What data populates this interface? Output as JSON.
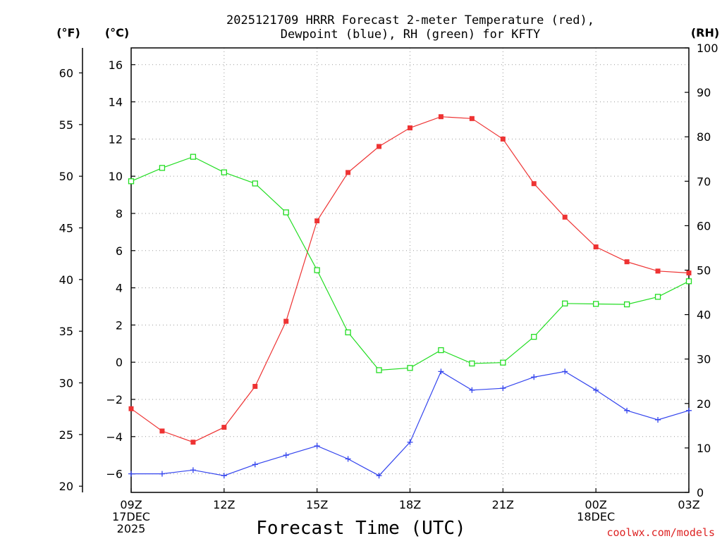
{
  "chart_data": {
    "type": "line",
    "title_line1": "2025121709 HRRR Forecast 2-meter Temperature (red),",
    "title_line2": "Dewpoint (blue), RH (green) for KFTY",
    "xlabel": "Forecast Time (UTC)",
    "credit": "coolwx.com/models",
    "units": {
      "fahrenheit": "(°F)",
      "celsius": "(°C)",
      "rh": "(RH)"
    },
    "x_hours": [
      0,
      1,
      2,
      3,
      4,
      5,
      6,
      7,
      8,
      9,
      10,
      11,
      12,
      13,
      14,
      15,
      16,
      17,
      18
    ],
    "x_range": [
      0,
      18
    ],
    "x_ticks": [
      {
        "hour": 0,
        "lines": [
          "09Z",
          "17DEC",
          "2025"
        ]
      },
      {
        "hour": 3,
        "lines": [
          "12Z"
        ]
      },
      {
        "hour": 6,
        "lines": [
          "15Z"
        ]
      },
      {
        "hour": 9,
        "lines": [
          "18Z"
        ]
      },
      {
        "hour": 12,
        "lines": [
          "21Z"
        ]
      },
      {
        "hour": 15,
        "lines": [
          "00Z",
          "18DEC"
        ]
      },
      {
        "hour": 18,
        "lines": [
          "03Z"
        ]
      }
    ],
    "celsius_range": [
      -7.0,
      16.9
    ],
    "celsius_ticks": [
      -6,
      -4,
      -2,
      0,
      2,
      4,
      6,
      8,
      10,
      12,
      14,
      16
    ],
    "fahrenheit_ticks": [
      20,
      25,
      30,
      35,
      40,
      45,
      50,
      55,
      60
    ],
    "rh_range": [
      0,
      100
    ],
    "rh_ticks": [
      0,
      10,
      20,
      30,
      40,
      50,
      60,
      70,
      80,
      90,
      100
    ],
    "series": [
      {
        "name": "Temperature",
        "axis": "celsius",
        "color": "#ee3333",
        "marker": "filled-square",
        "values": [
          -2.5,
          -3.7,
          -4.3,
          -3.5,
          -1.3,
          2.2,
          7.6,
          10.2,
          11.6,
          12.6,
          13.2,
          13.1,
          12.0,
          9.6,
          7.8,
          6.2,
          5.4,
          4.9,
          4.8
        ]
      },
      {
        "name": "Dewpoint",
        "axis": "celsius",
        "color": "#3344ee",
        "marker": "plus",
        "values": [
          -6.0,
          -6.0,
          -5.8,
          -6.1,
          -5.5,
          -5.0,
          -4.5,
          -5.2,
          -6.1,
          -4.3,
          -0.5,
          -1.5,
          -1.4,
          -0.8,
          -0.5,
          -1.5,
          -2.6,
          -3.1,
          -2.6
        ]
      },
      {
        "name": "RH",
        "axis": "rh",
        "color": "#22dd22",
        "marker": "open-square",
        "values": [
          70,
          73,
          75.5,
          72,
          69.5,
          63,
          50,
          36,
          27.5,
          28,
          32,
          29,
          29.2,
          35,
          42.5,
          42.4,
          42.3,
          44,
          47.5
        ]
      }
    ]
  }
}
